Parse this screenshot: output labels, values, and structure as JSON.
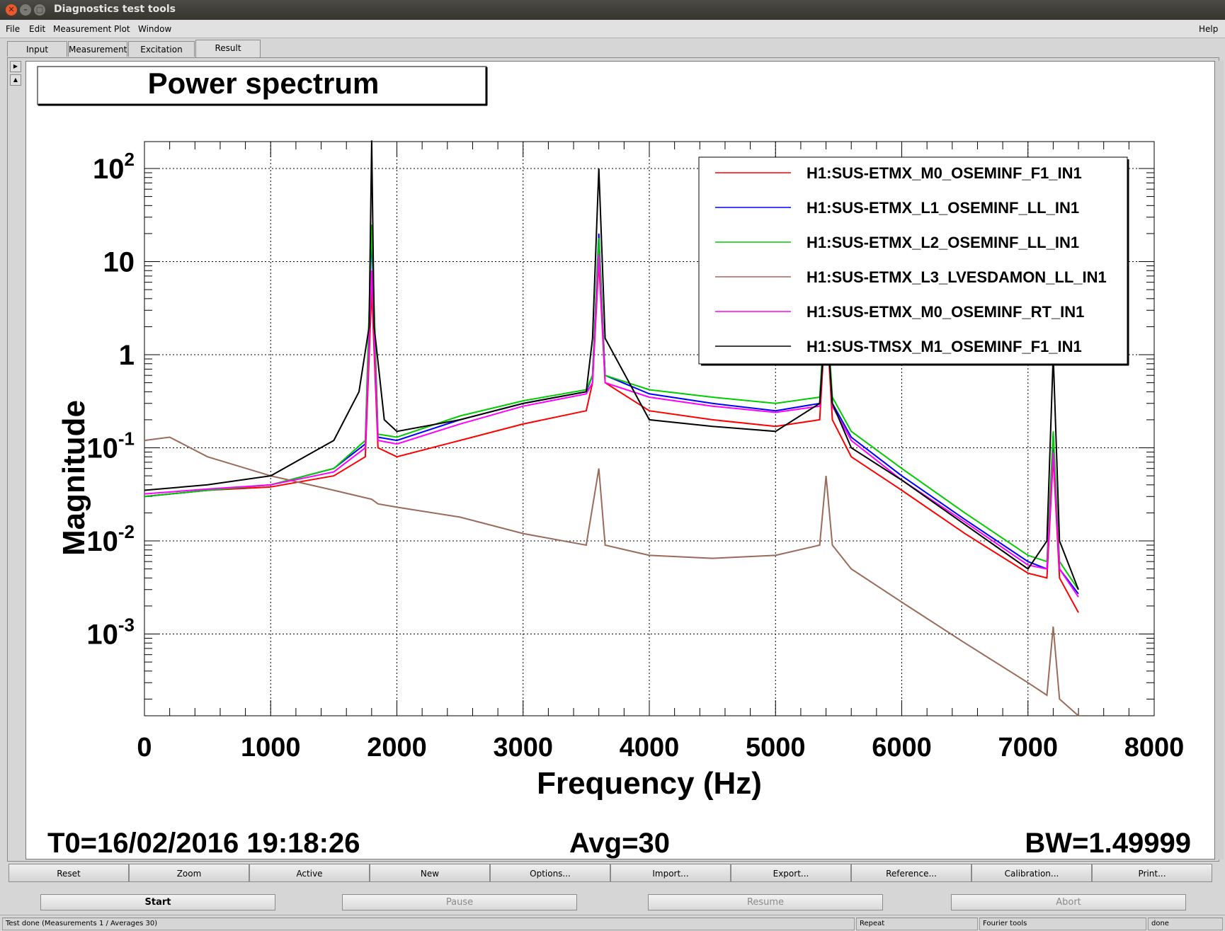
{
  "window": {
    "title": "Diagnostics test tools"
  },
  "menu": {
    "file": "File",
    "edit": "Edit",
    "measurement": "Measurement",
    "plot": "Plot",
    "window": "Window",
    "help": "Help"
  },
  "tabs": [
    {
      "label": "Input"
    },
    {
      "label": "Measurement"
    },
    {
      "label": "Excitation"
    },
    {
      "label": "Result"
    }
  ],
  "plot": {
    "title": "Power spectrum",
    "footer_left": "T0=16/02/2016 19:18:26",
    "footer_center": "Avg=30",
    "footer_right": "BW=1.49999"
  },
  "chart_data": {
    "type": "line",
    "title": "Power spectrum",
    "xlabel": "Frequency (Hz)",
    "ylabel": "Magnitude",
    "xlim": [
      0,
      8000
    ],
    "ylim": [
      0.0001,
      200
    ],
    "yscale": "log",
    "grid": true,
    "legend_position": "top-right",
    "x_ticks": [
      "0",
      "1000",
      "2000",
      "3000",
      "4000",
      "5000",
      "6000",
      "7000",
      "8000"
    ],
    "y_ticks": [
      {
        "value": 100,
        "base": "10",
        "exp": "2"
      },
      {
        "value": 10,
        "base": "10",
        "exp": ""
      },
      {
        "value": 1,
        "base": "1",
        "exp": ""
      },
      {
        "value": 0.1,
        "base": "10",
        "exp": "-1"
      },
      {
        "value": 0.01,
        "base": "10",
        "exp": "-2"
      },
      {
        "value": 0.001,
        "base": "10",
        "exp": "-3"
      }
    ],
    "series": [
      {
        "name": "H1:SUS-ETMX_M0_OSEMINF_F1_IN1",
        "color": "#ff0000",
        "x": [
          0,
          500,
          1000,
          1500,
          1750,
          1800,
          1850,
          2000,
          2500,
          3000,
          3500,
          3550,
          3600,
          3650,
          4000,
          4500,
          5000,
          5350,
          5400,
          5450,
          5600,
          6000,
          6500,
          7000,
          7150,
          7200,
          7250,
          7400
        ],
        "y": [
          0.03,
          0.035,
          0.038,
          0.05,
          0.08,
          5,
          0.1,
          0.08,
          0.12,
          0.18,
          0.25,
          0.5,
          10,
          0.5,
          0.25,
          0.2,
          0.17,
          0.2,
          3,
          0.2,
          0.08,
          0.035,
          0.012,
          0.0045,
          0.004,
          0.08,
          0.004,
          0.0017
        ]
      },
      {
        "name": "H1:SUS-ETMX_L1_OSEMINF_LL_IN1",
        "color": "#0000ff",
        "x": [
          0,
          500,
          1000,
          1500,
          1750,
          1800,
          1850,
          2000,
          2500,
          3000,
          3500,
          3550,
          3600,
          3650,
          4000,
          4500,
          5000,
          5350,
          5400,
          5450,
          5600,
          6000,
          6500,
          7000,
          7150,
          7200,
          7250,
          7400
        ],
        "y": [
          0.03,
          0.035,
          0.04,
          0.06,
          0.11,
          20,
          0.13,
          0.12,
          0.2,
          0.3,
          0.4,
          0.6,
          20,
          0.6,
          0.38,
          0.3,
          0.25,
          0.3,
          4,
          0.3,
          0.13,
          0.05,
          0.017,
          0.006,
          0.005,
          0.1,
          0.005,
          0.0027
        ]
      },
      {
        "name": "H1:SUS-ETMX_L2_OSEMINF_LL_IN1",
        "color": "#00cc00",
        "x": [
          0,
          500,
          1000,
          1500,
          1750,
          1800,
          1850,
          2000,
          2500,
          3000,
          3500,
          3550,
          3600,
          3650,
          4000,
          4500,
          5000,
          5350,
          5400,
          5450,
          5600,
          6000,
          6500,
          7000,
          7150,
          7200,
          7250,
          7400
        ],
        "y": [
          0.03,
          0.035,
          0.04,
          0.06,
          0.12,
          25,
          0.14,
          0.13,
          0.22,
          0.32,
          0.42,
          0.6,
          18,
          0.6,
          0.42,
          0.35,
          0.3,
          0.35,
          4,
          0.35,
          0.15,
          0.06,
          0.02,
          0.007,
          0.006,
          0.15,
          0.006,
          0.003
        ]
      },
      {
        "name": "H1:SUS-ETMX_L3_LVESDAMON_LL_IN1",
        "color": "#9a6b5a",
        "x": [
          0,
          200,
          500,
          1000,
          1500,
          1800,
          1850,
          2000,
          2500,
          3000,
          3500,
          3600,
          3650,
          4000,
          4500,
          5000,
          5350,
          5400,
          5450,
          5600,
          6000,
          6500,
          7000,
          7150,
          7200,
          7250,
          7400
        ],
        "y": [
          0.12,
          0.13,
          0.08,
          0.05,
          0.035,
          0.028,
          0.025,
          0.023,
          0.018,
          0.012,
          0.009,
          0.06,
          0.009,
          0.007,
          0.0065,
          0.007,
          0.009,
          0.05,
          0.009,
          0.005,
          0.0022,
          0.0008,
          0.0003,
          0.00022,
          0.0012,
          0.0002,
          0.00012
        ]
      },
      {
        "name": "H1:SUS-ETMX_M0_OSEMINF_RT_IN1",
        "color": "#ff00ff",
        "x": [
          0,
          500,
          1000,
          1500,
          1750,
          1800,
          1850,
          2000,
          2500,
          3000,
          3500,
          3550,
          3600,
          3650,
          4000,
          4500,
          5000,
          5350,
          5400,
          5450,
          5600,
          6000,
          6500,
          7000,
          7150,
          7200,
          7250,
          7400
        ],
        "y": [
          0.032,
          0.036,
          0.04,
          0.055,
          0.1,
          8,
          0.12,
          0.11,
          0.18,
          0.28,
          0.38,
          0.5,
          12,
          0.5,
          0.35,
          0.28,
          0.24,
          0.28,
          3,
          0.28,
          0.12,
          0.045,
          0.016,
          0.0055,
          0.005,
          0.09,
          0.005,
          0.0025
        ]
      },
      {
        "name": "H1:SUS-TMSX_M1_OSEMINF_F1_IN1",
        "color": "#000000",
        "x": [
          0,
          500,
          1000,
          1500,
          1700,
          1780,
          1800,
          1820,
          1900,
          2000,
          2500,
          3000,
          3500,
          3550,
          3600,
          3650,
          4000,
          4500,
          5000,
          5350,
          5400,
          5450,
          5600,
          6000,
          6500,
          7000,
          7150,
          7200,
          7250,
          7400
        ],
        "y": [
          0.035,
          0.04,
          0.05,
          0.12,
          0.4,
          2,
          200,
          2,
          0.2,
          0.15,
          0.2,
          0.3,
          0.4,
          1.5,
          100,
          1.5,
          0.2,
          0.17,
          0.15,
          0.3,
          3,
          0.3,
          0.1,
          0.045,
          0.015,
          0.005,
          0.01,
          1,
          0.01,
          0.003
        ]
      }
    ]
  },
  "toolbar": {
    "reset": "Reset",
    "zoom": "Zoom",
    "active": "Active",
    "new": "New",
    "options": "Options...",
    "import": "Import...",
    "export": "Export...",
    "reference": "Reference...",
    "calibration": "Calibration...",
    "print": "Print..."
  },
  "controls": {
    "start": "Start",
    "pause": "Pause",
    "resume": "Resume",
    "abort": "Abort"
  },
  "status": {
    "message": "Test done (Measurements 1 / Averages 30)",
    "mode": "Repeat",
    "tool": "Fourier tools",
    "state": "done"
  },
  "colors": {
    "titlebar": "#3c3b37",
    "close_button": "#e85a2b",
    "chrome": "#d6d6d6"
  }
}
